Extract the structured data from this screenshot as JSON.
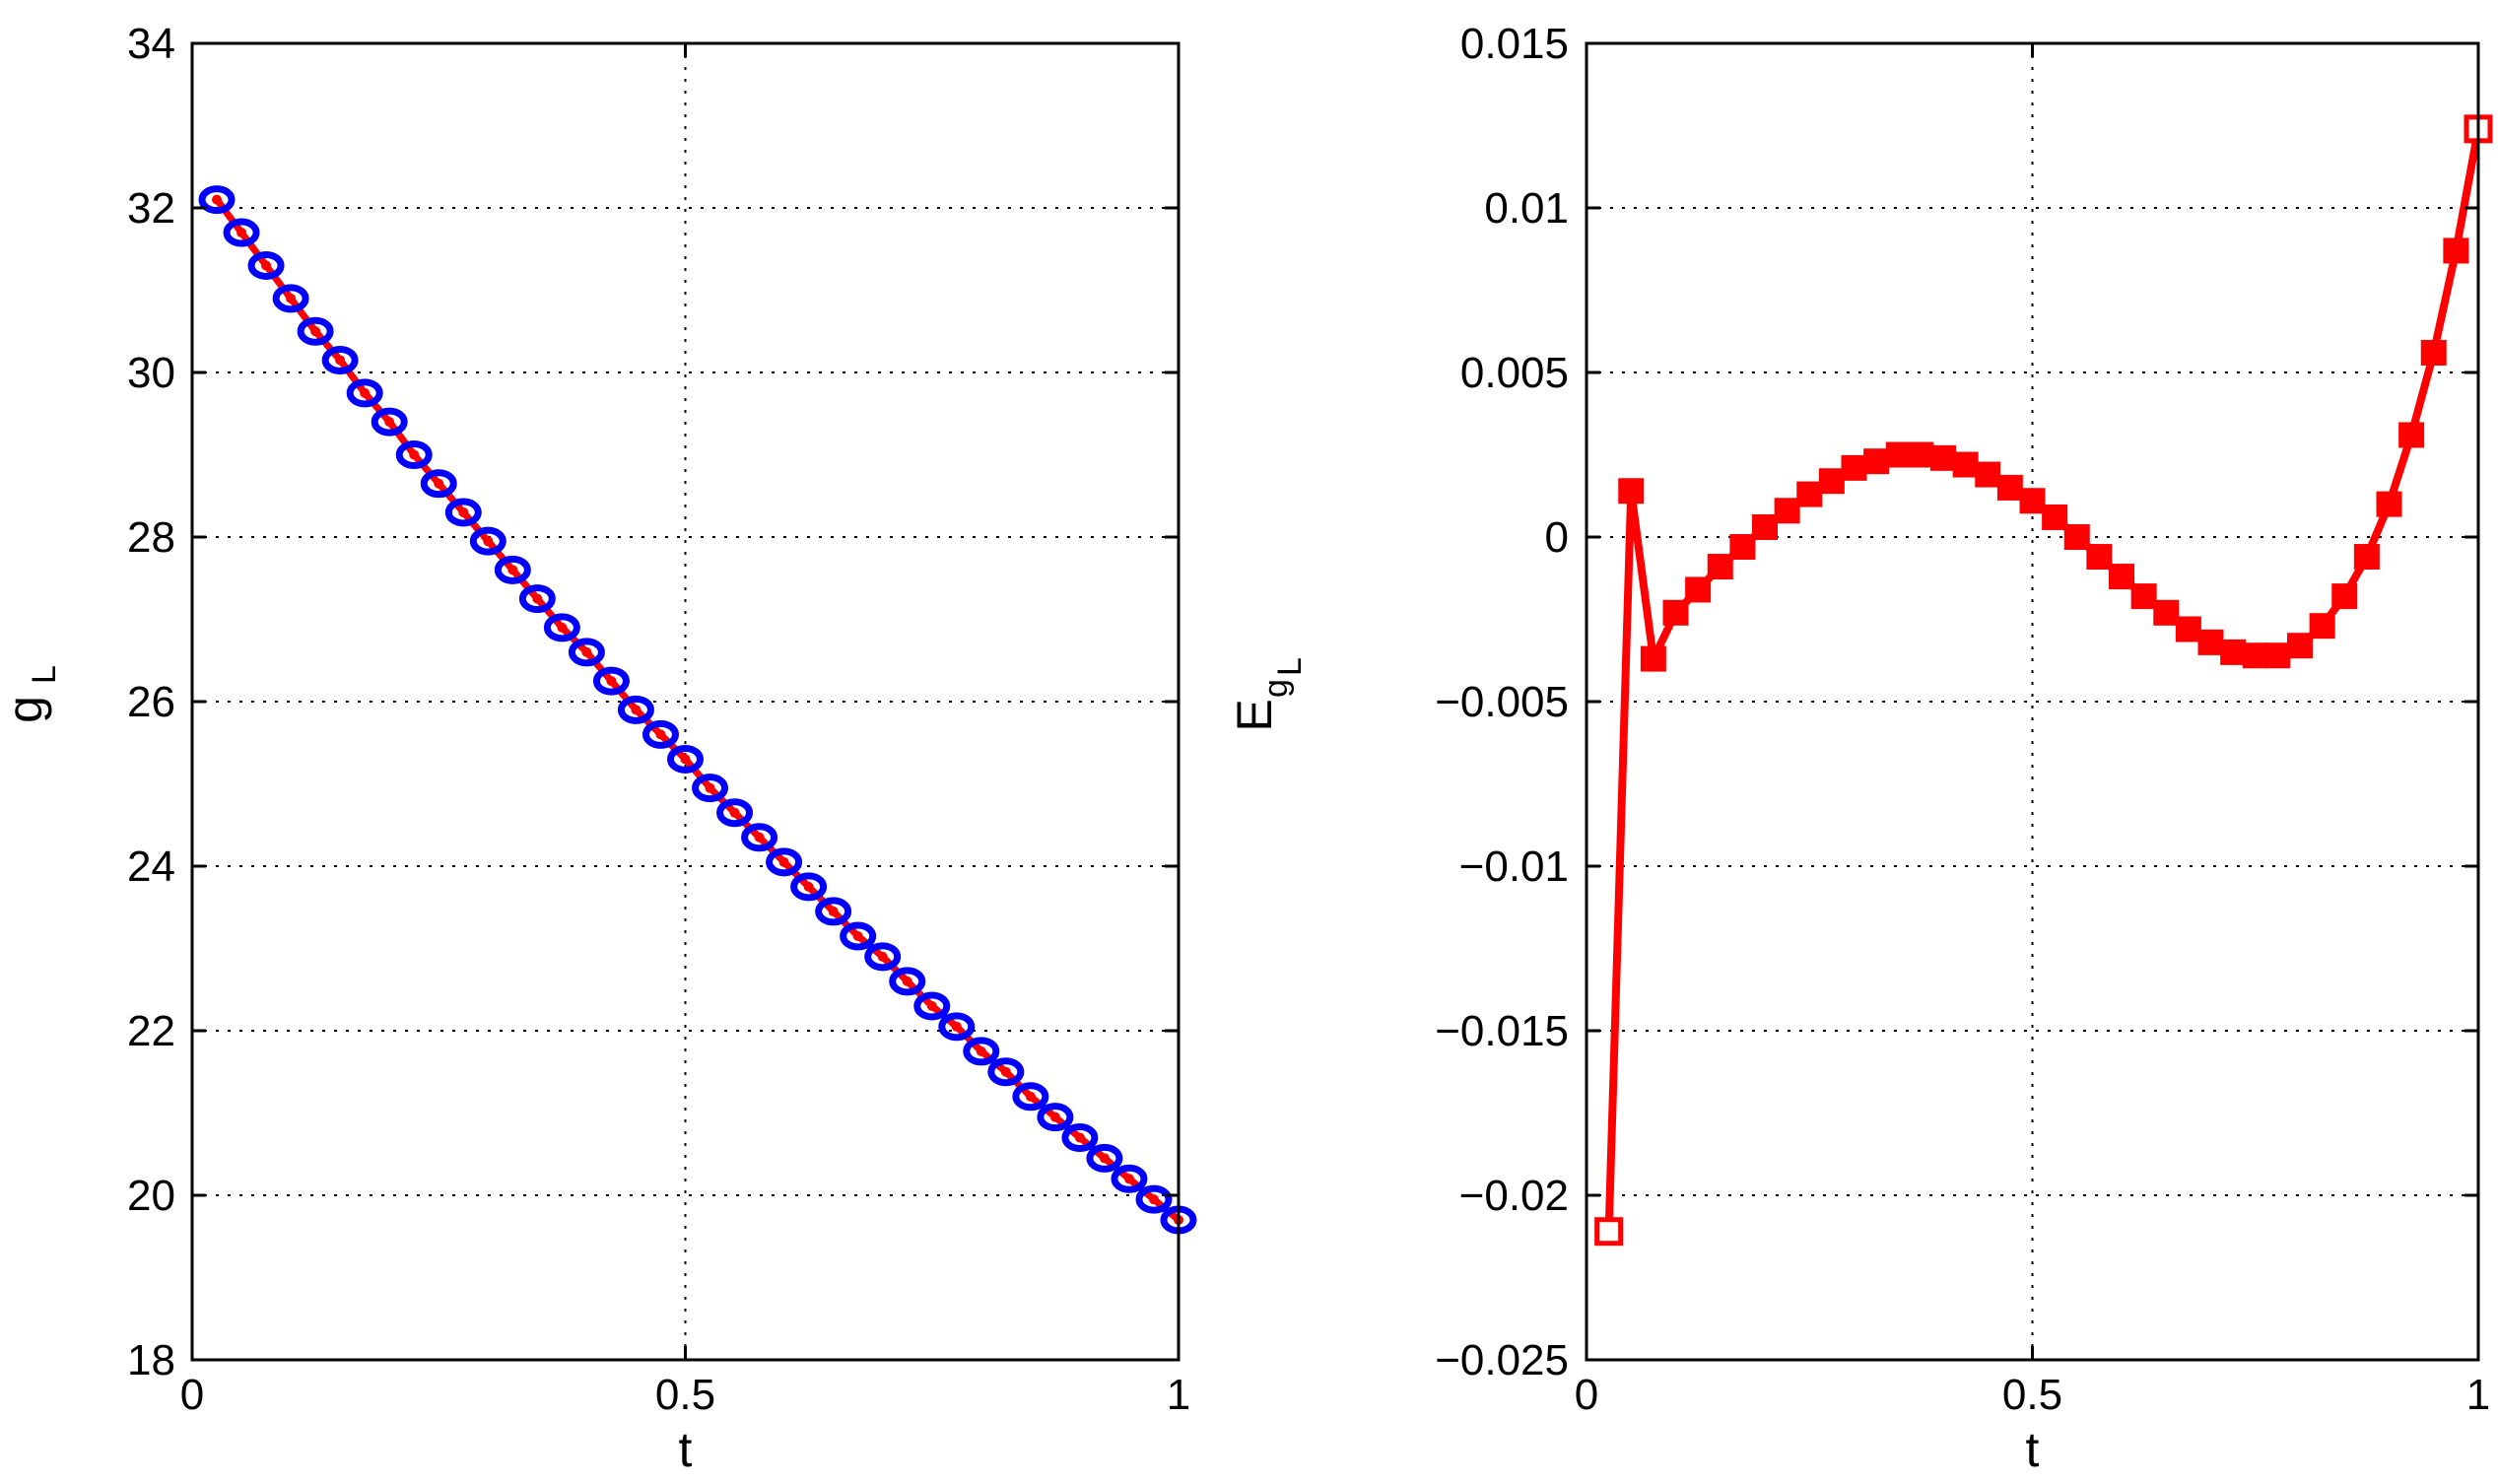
{
  "chart_data": [
    {
      "type": "line",
      "title": "",
      "xlabel": "t",
      "ylabel_main": "g",
      "ylabel_sub": "L",
      "xlim": [
        0,
        1
      ],
      "ylim": [
        18,
        34
      ],
      "xticks": [
        0,
        0.5,
        1
      ],
      "xtick_labels": [
        "0",
        "0.5",
        "1"
      ],
      "yticks": [
        18,
        20,
        22,
        24,
        26,
        28,
        30,
        32,
        34
      ],
      "ytick_labels": [
        "18",
        "20",
        "22",
        "24",
        "26",
        "28",
        "30",
        "32",
        "34"
      ],
      "grid": true,
      "series": [
        {
          "style": "blue open circles over red line with red dots",
          "line_color": "#ff0000",
          "marker_color": "#0000ff",
          "dot_color": "#ff0000",
          "x": [
            0.025,
            0.05,
            0.075,
            0.1,
            0.125,
            0.15,
            0.175,
            0.2,
            0.225,
            0.25,
            0.275,
            0.3,
            0.325,
            0.35,
            0.375,
            0.4,
            0.425,
            0.45,
            0.475,
            0.5,
            0.525,
            0.55,
            0.575,
            0.6,
            0.625,
            0.65,
            0.675,
            0.7,
            0.725,
            0.75,
            0.775,
            0.8,
            0.825,
            0.85,
            0.875,
            0.9,
            0.925,
            0.95,
            0.975,
            1.0
          ],
          "y": [
            32.1,
            31.7,
            31.3,
            30.9,
            30.5,
            30.15,
            29.75,
            29.4,
            29.0,
            28.65,
            28.3,
            27.95,
            27.6,
            27.25,
            26.9,
            26.6,
            26.25,
            25.9,
            25.6,
            25.3,
            24.95,
            24.65,
            24.35,
            24.05,
            23.75,
            23.45,
            23.15,
            22.9,
            22.6,
            22.3,
            22.05,
            21.75,
            21.5,
            21.2,
            20.95,
            20.7,
            20.45,
            20.2,
            19.95,
            19.7
          ]
        }
      ]
    },
    {
      "type": "line",
      "title": "",
      "xlabel": "t",
      "ylabel_main": "E",
      "ylabel_sub1": "g",
      "ylabel_sub2": "L",
      "xlim": [
        0,
        1
      ],
      "ylim": [
        -0.025,
        0.015
      ],
      "xticks": [
        0,
        0.5,
        1
      ],
      "xtick_labels": [
        "0",
        "0.5",
        "1"
      ],
      "yticks": [
        -0.025,
        -0.02,
        -0.015,
        -0.01,
        -0.005,
        0,
        0.005,
        0.01,
        0.015
      ],
      "ytick_labels": [
        "−0.025",
        "−0.02",
        "−0.015",
        "−0.01",
        "−0.005",
        "0",
        "0.005",
        "0.01",
        "0.015"
      ],
      "grid": true,
      "series": [
        {
          "style": "red line with red square markers",
          "color": "#ff0000",
          "x": [
            0.025,
            0.05,
            0.075,
            0.1,
            0.125,
            0.15,
            0.175,
            0.2,
            0.225,
            0.25,
            0.275,
            0.3,
            0.325,
            0.35,
            0.375,
            0.4,
            0.425,
            0.45,
            0.475,
            0.5,
            0.525,
            0.55,
            0.575,
            0.6,
            0.625,
            0.65,
            0.675,
            0.7,
            0.725,
            0.75,
            0.775,
            0.8,
            0.825,
            0.85,
            0.875,
            0.9,
            0.925,
            0.95,
            0.975,
            1.0
          ],
          "y": [
            -0.0211,
            0.0014,
            -0.0037,
            -0.0023,
            -0.0016,
            -0.0009,
            -0.0003,
            0.0003,
            0.0008,
            0.0013,
            0.0017,
            0.0021,
            0.0023,
            0.0025,
            0.0025,
            0.0024,
            0.0022,
            0.0019,
            0.0015,
            0.0011,
            0.0006,
            0.0,
            -0.0006,
            -0.0012,
            -0.0018,
            -0.0023,
            -0.0028,
            -0.0032,
            -0.0035,
            -0.0036,
            -0.0036,
            -0.0033,
            -0.0027,
            -0.0018,
            -0.0006,
            0.001,
            0.0031,
            0.0056,
            0.0087,
            0.0124
          ]
        }
      ]
    }
  ]
}
